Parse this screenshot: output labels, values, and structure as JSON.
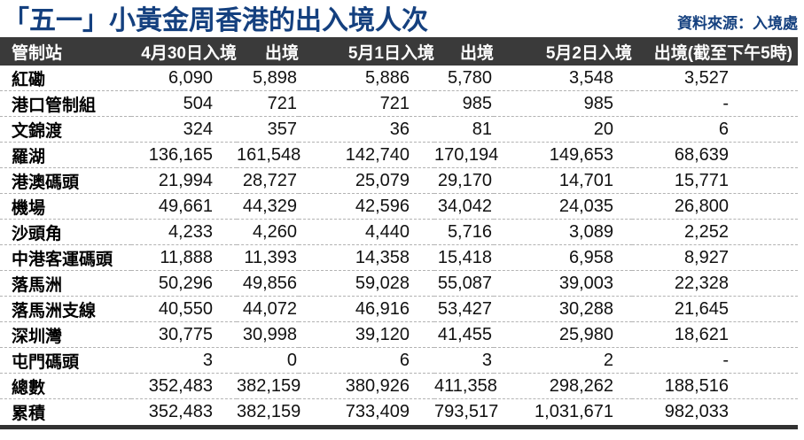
{
  "page": {
    "title": "「五一」小黃金周香港的出入境人次",
    "source": "資料來源：入境處"
  },
  "colors": {
    "title_blue": "#14407f",
    "header_bg": "#3a3a3a",
    "header_text": "#ffffff",
    "row_divider": "#b3b3b3",
    "bottom_rule": "#323232",
    "body_text": "#111111"
  },
  "chart_data": {
    "type": "table",
    "title": "「五一」小黃金周香港的出入境人次",
    "source": "資料來源：入境處",
    "columns": [
      "管制站",
      "4月30日入境",
      "出境",
      "5月1日入境",
      "出境",
      "5月2日入境",
      "出境(截至下午5時)"
    ],
    "rows": [
      [
        "紅磡",
        "6,090",
        "5,898",
        "5,886",
        "5,780",
        "3,548",
        "3,527"
      ],
      [
        "港口管制組",
        "504",
        "721",
        "721",
        "985",
        "985",
        "-"
      ],
      [
        "文錦渡",
        "324",
        "357",
        "36",
        "81",
        "20",
        "6"
      ],
      [
        "羅湖",
        "136,165",
        "161,548",
        "142,740",
        "170,194",
        "149,653",
        "68,639"
      ],
      [
        "港澳碼頭",
        "21,994",
        "28,727",
        "25,079",
        "29,170",
        "14,701",
        "15,771"
      ],
      [
        "機場",
        "49,661",
        "44,329",
        "42,596",
        "34,042",
        "24,035",
        "26,800"
      ],
      [
        "沙頭角",
        "4,233",
        "4,260",
        "4,440",
        "5,716",
        "3,089",
        "2,252"
      ],
      [
        "中港客運碼頭",
        "11,888",
        "11,393",
        "14,358",
        "15,418",
        "6,958",
        "8,927"
      ],
      [
        "落馬洲",
        "50,296",
        "49,856",
        "59,028",
        "55,087",
        "39,003",
        "22,328"
      ],
      [
        "落馬洲支線",
        "40,550",
        "44,072",
        "46,916",
        "53,427",
        "30,288",
        "21,645"
      ],
      [
        "深圳灣",
        "30,775",
        "30,998",
        "39,120",
        "41,455",
        "25,980",
        "18,621"
      ],
      [
        "屯門碼頭",
        "3",
        "0",
        "6",
        "3",
        "2",
        "-"
      ],
      [
        "總數",
        "352,483",
        "382,159",
        "380,926",
        "411,358",
        "298,262",
        "188,516"
      ],
      [
        "累積",
        "352,483",
        "382,159",
        "733,409",
        "793,517",
        "1,031,671",
        "982,033"
      ]
    ]
  }
}
